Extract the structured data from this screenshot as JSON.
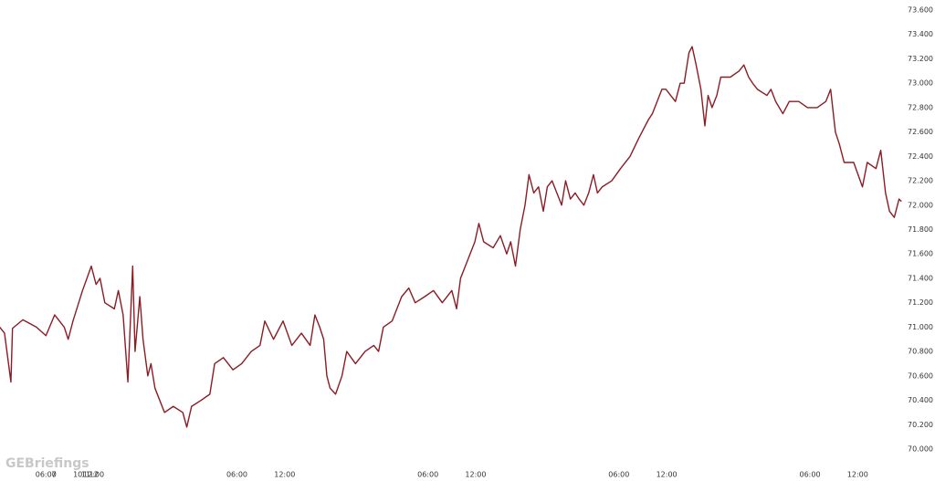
{
  "chart_data": {
    "type": "line",
    "watermark": "GEBriefings",
    "x": [
      0.2,
      0.8,
      1.6,
      1.8,
      3.1,
      4.8,
      6.0,
      7.1,
      8.3,
      8.8,
      9.4,
      10.6,
      11.7,
      12.3,
      12.8,
      13.4,
      14.6,
      15.1,
      15.7,
      16.3,
      16.9,
      17.2,
      17.8,
      18.2,
      18.8,
      19.2,
      19.7,
      20.3,
      20.9,
      22.0,
      23.2,
      23.7,
      24.3,
      25.5,
      26.6,
      27.2,
      28.3,
      29.5,
      30.6,
      31.8,
      32.9,
      33.5,
      34.6,
      35.8,
      36.9,
      38.1,
      39.2,
      39.8,
      40.4,
      40.9,
      41.3,
      41.7,
      42.4,
      43.2,
      43.8,
      44.9,
      46.1,
      47.2,
      47.8,
      48.4,
      49.5,
      50.7,
      51.6,
      52.4,
      53.6,
      54.7,
      55.8,
      57.0,
      57.6,
      58.1,
      58.7,
      59.3,
      59.9,
      60.4,
      61.0,
      62.2,
      63.1,
      63.9,
      64.4,
      65.0,
      65.6,
      66.2,
      66.7,
      67.3,
      67.9,
      68.5,
      69.0,
      69.6,
      70.2,
      70.8,
      71.3,
      71.9,
      72.5,
      73.0,
      73.6,
      74.2,
      74.8,
      75.3,
      75.9,
      77.1,
      78.2,
      79.4,
      80.5,
      81.7,
      82.2,
      82.8,
      83.4,
      83.9,
      84.5,
      85.1,
      85.7,
      86.2,
      86.8,
      87.2,
      87.7,
      88.3,
      88.8,
      89.2,
      89.7,
      90.3,
      90.8,
      92.0,
      93.1,
      93.7,
      94.3,
      94.8,
      95.4,
      96.6,
      97.1,
      97.7,
      98.6,
      99.4,
      100.6,
      101.7,
      102.9,
      104.0,
      104.6,
      105.2,
      105.7,
      106.3,
      107.5,
      108.6,
      109.2,
      110.3,
      110.9,
      111.5,
      112.0,
      112.6,
      113.2,
      113.5
    ],
    "series": [
      {
        "color": "#8b1c24",
        "values": [
          71.0,
          70.95,
          70.55,
          70.99,
          71.06,
          71.0,
          70.93,
          71.1,
          71.0,
          70.9,
          71.05,
          71.3,
          71.5,
          71.35,
          71.4,
          71.2,
          71.15,
          71.3,
          71.1,
          70.55,
          71.5,
          70.8,
          71.25,
          70.9,
          70.6,
          70.7,
          70.5,
          70.4,
          70.3,
          70.35,
          70.3,
          70.18,
          70.35,
          70.4,
          70.45,
          70.7,
          70.75,
          70.65,
          70.7,
          70.8,
          70.85,
          71.05,
          70.9,
          71.05,
          70.85,
          70.95,
          70.85,
          71.1,
          71.0,
          70.9,
          70.6,
          70.5,
          70.45,
          70.6,
          70.8,
          70.7,
          70.8,
          70.85,
          70.8,
          71.0,
          71.05,
          71.25,
          71.32,
          71.2,
          71.25,
          71.3,
          71.2,
          71.3,
          71.15,
          71.4,
          71.5,
          71.6,
          71.7,
          71.85,
          71.7,
          71.65,
          71.75,
          71.6,
          71.7,
          71.5,
          71.8,
          72.0,
          72.25,
          72.1,
          72.15,
          71.95,
          72.15,
          72.2,
          72.1,
          72.0,
          72.2,
          72.05,
          72.1,
          72.05,
          72.0,
          72.1,
          72.25,
          72.1,
          72.15,
          72.2,
          72.3,
          72.4,
          72.55,
          72.7,
          72.75,
          72.85,
          72.95,
          72.95,
          72.9,
          72.85,
          73.0,
          73.0,
          73.25,
          73.3,
          73.15,
          72.95,
          72.65,
          72.9,
          72.8,
          72.9,
          73.05,
          73.05,
          73.1,
          73.15,
          73.05,
          73.0,
          72.95,
          72.9,
          72.95,
          72.85,
          72.75,
          72.85,
          72.85,
          72.8,
          72.8,
          72.85,
          72.95,
          72.6,
          72.5,
          72.35,
          72.35,
          72.15,
          72.35,
          72.3,
          72.45,
          72.1,
          71.95,
          71.9,
          72.05,
          72.03
        ]
      }
    ],
    "xlim": [
      0,
      113.7
    ],
    "xticks": [
      {
        "value": 6,
        "label": "06:00"
      },
      {
        "value": 12,
        "label": "12:00"
      },
      7,
      {
        "value": 30,
        "label": "06:00"
      },
      {
        "value": 36,
        "label": "12:00"
      },
      10,
      {
        "value": 54,
        "label": "06:00"
      },
      {
        "value": 60,
        "label": "12:00"
      },
      11,
      {
        "value": 78,
        "label": "06:00"
      },
      {
        "value": 84,
        "label": "12:00"
      },
      12,
      {
        "value": 102,
        "label": "06:00"
      },
      {
        "value": 108,
        "label": "12:00"
      }
    ],
    "ylim": [
      70,
      73.6
    ],
    "yticks": [
      {
        "value": 70,
        "label": "70.000"
      },
      {
        "value": 70.2,
        "label": "70.200"
      },
      {
        "value": 70.4,
        "label": "70.400"
      },
      {
        "value": 70.6,
        "label": "70.600"
      },
      {
        "value": 70.8,
        "label": "70.800"
      },
      {
        "value": 71,
        "label": "71.000"
      },
      {
        "value": 71.2,
        "label": "71.200"
      },
      {
        "value": 71.4,
        "label": "71.400"
      },
      {
        "value": 71.6,
        "label": "71.600"
      },
      {
        "value": 71.8,
        "label": "71.800"
      },
      {
        "value": 72,
        "label": "72.000"
      },
      {
        "value": 72.2,
        "label": "72.200"
      },
      {
        "value": 72.4,
        "label": "72.400"
      },
      {
        "value": 72.6,
        "label": "72.600"
      },
      {
        "value": 72.8,
        "label": "72.800"
      },
      {
        "value": 73,
        "label": "73.000"
      },
      {
        "value": 73.2,
        "label": "73.200"
      },
      {
        "value": 73.4,
        "label": "73.400"
      },
      {
        "value": 73.6,
        "label": "73.600"
      }
    ],
    "grid": false
  }
}
